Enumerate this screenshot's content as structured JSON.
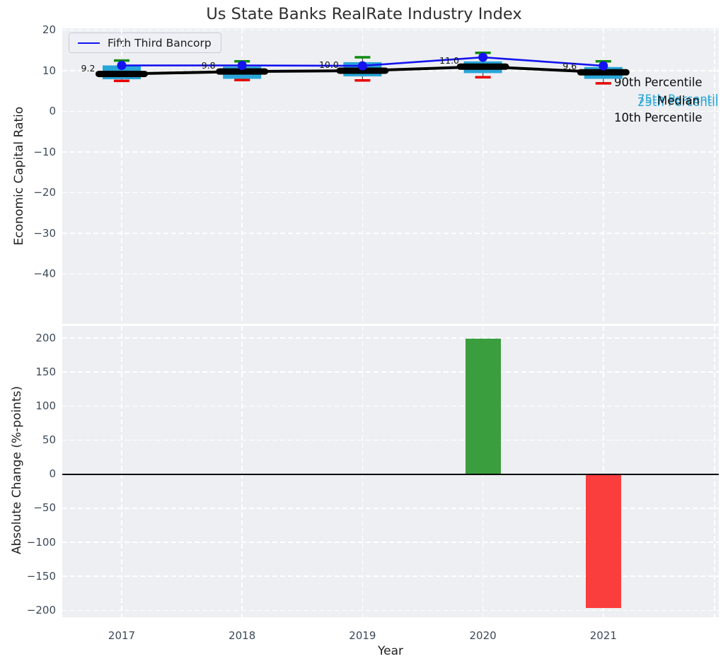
{
  "title": "Us State Banks RealRate Industry Index",
  "chart_data": [
    {
      "type": "box",
      "title": "Us State Banks RealRate Industry Index",
      "ylabel": "Economic Capital Ratio",
      "ylim": [
        -52,
        20.5
      ],
      "yticks": [
        20,
        10,
        0,
        -10,
        -20,
        -30,
        -40
      ],
      "x": [
        2017,
        2018,
        2019,
        2020,
        2021
      ],
      "legend": [
        "Fifth Third Bancorp"
      ],
      "company_line": {
        "name": "Fifth Third Bancorp",
        "values": [
          11.3,
          11.3,
          11.2,
          13.3,
          11.2
        ]
      },
      "median": [
        9.2,
        9.8,
        10.0,
        11.0,
        9.6
      ],
      "median_labels": [
        "9.2",
        "9.8",
        "10.0",
        "11.0",
        "9.6"
      ],
      "p90": [
        12.5,
        12.3,
        13.3,
        14.4,
        12.3
      ],
      "p75": [
        11.3,
        11.0,
        12.1,
        12.3,
        10.9
      ],
      "p25": [
        7.9,
        8.0,
        8.6,
        9.4,
        8.0
      ],
      "p10": [
        7.5,
        7.7,
        7.6,
        8.4,
        6.9
      ],
      "side_labels": {
        "p90": "90th Percentile",
        "p75": "75th Percentile",
        "median": "Median",
        "p25": "25th Percentile",
        "p10": "10th Percentile"
      },
      "grid": true,
      "legend_position": "upper left"
    },
    {
      "type": "bar",
      "ylabel": "Absolute Change (%-points)",
      "xlabel": "Year",
      "ylim": [
        -211,
        218
      ],
      "yticks": [
        200,
        150,
        100,
        50,
        0,
        -50,
        -100,
        -150,
        -200
      ],
      "categories": [
        2017,
        2018,
        2019,
        2020,
        2021
      ],
      "values": [
        0,
        0,
        0,
        199,
        -197
      ],
      "grid": true
    }
  ],
  "colors": {
    "company_line": "#1414f0",
    "box_fill": "#29a6d8",
    "p90_cap": "#0f8a0f",
    "p10_cap": "#e60000",
    "median_line": "#000000",
    "positive_bar": "#3a9e3e",
    "negative_bar": "#fa3d3d",
    "axes_bg": "#edeff2",
    "grid": "#ffffff",
    "tick_text": "#3d4a59"
  }
}
